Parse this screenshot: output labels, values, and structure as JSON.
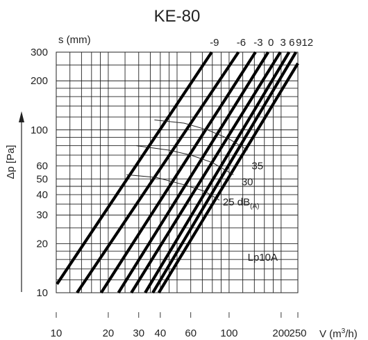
{
  "chart_data": {
    "type": "line",
    "title": "KE-80",
    "ylabel": "Δp [Pa]",
    "y2label": "s (mm)",
    "xlabel_prefix": "V (m",
    "xlabel_sup": "3",
    "xlabel_suffix": "/h)",
    "x_scale": "log",
    "y_scale": "log",
    "xlim": [
      10,
      250
    ],
    "ylim": [
      10,
      300
    ],
    "grid": true,
    "x_ticks": [
      {
        "v": 10,
        "label": "10"
      },
      {
        "v": 20,
        "label": "20"
      },
      {
        "v": 30,
        "label": "30"
      },
      {
        "v": 40,
        "label": "40"
      },
      {
        "v": 60,
        "label": "60"
      },
      {
        "v": 100,
        "label": "100"
      },
      {
        "v": 200,
        "label": "200"
      },
      {
        "v": 250,
        "label": "250"
      }
    ],
    "y_ticks": [
      {
        "v": 10,
        "label": "10"
      },
      {
        "v": 20,
        "label": "20"
      },
      {
        "v": 30,
        "label": "30"
      },
      {
        "v": 40,
        "label": "40"
      },
      {
        "v": 50,
        "label": "50"
      },
      {
        "v": 60,
        "label": "60"
      },
      {
        "v": 100,
        "label": "100"
      },
      {
        "v": 200,
        "label": "200"
      },
      {
        "v": 300,
        "label": "300"
      }
    ],
    "x_grid": [
      10,
      12,
      14,
      16,
      18,
      20,
      25,
      30,
      35,
      40,
      45,
      50,
      60,
      70,
      80,
      90,
      100,
      120,
      140,
      160,
      180,
      200,
      250
    ],
    "y_grid": [
      10,
      12,
      14,
      16,
      18,
      20,
      25,
      30,
      35,
      40,
      45,
      50,
      60,
      70,
      80,
      90,
      100,
      120,
      140,
      160,
      180,
      200,
      250,
      300
    ],
    "series": [
      {
        "name": "-9",
        "points": [
          [
            10.1,
            11.3
          ],
          [
            79.3,
            300
          ]
        ]
      },
      {
        "name": "-6",
        "points": [
          [
            13.2,
            10
          ],
          [
            113.3,
            300
          ]
        ]
      },
      {
        "name": "-3",
        "points": [
          [
            18.2,
            10
          ],
          [
            142.1,
            300
          ]
        ]
      },
      {
        "name": "0",
        "points": [
          [
            22.9,
            10
          ],
          [
            168.3,
            300
          ]
        ]
      },
      {
        "name": "3",
        "points": [
          [
            27.2,
            10
          ],
          [
            197.9,
            300
          ]
        ]
      },
      {
        "name": "6",
        "points": [
          [
            32.7,
            10
          ],
          [
            222.4,
            300
          ]
        ]
      },
      {
        "name": "9",
        "points": [
          [
            36.2,
            10
          ],
          [
            243.7,
            300
          ]
        ]
      },
      {
        "name": "12",
        "points": [
          [
            39.2,
            10
          ],
          [
            250,
            256
          ]
        ]
      }
    ],
    "sound_curves": [
      {
        "label": "35",
        "points": [
          [
            37,
            115
          ],
          [
            55,
            110
          ],
          [
            75,
            100
          ],
          [
            100,
            88
          ],
          [
            128,
            75
          ]
        ]
      },
      {
        "label": "30",
        "points": [
          [
            29,
            80
          ],
          [
            45,
            75
          ],
          [
            60,
            70
          ],
          [
            80,
            63
          ],
          [
            106,
            53
          ]
        ]
      },
      {
        "label": "25",
        "points": [
          [
            25.5,
            53
          ],
          [
            38,
            51
          ],
          [
            55,
            46
          ],
          [
            72,
            42
          ],
          [
            88,
            37
          ]
        ]
      }
    ],
    "sound_labels": [
      {
        "text": "35",
        "x": 135,
        "y": 60
      },
      {
        "text": "30",
        "x": 118,
        "y": 48
      },
      {
        "text": "25 dB",
        "sub": "(A)",
        "x": 92,
        "y": 36
      }
    ],
    "annotation": {
      "text": "Lp10A",
      "x": 128,
      "y": 16.5
    }
  }
}
